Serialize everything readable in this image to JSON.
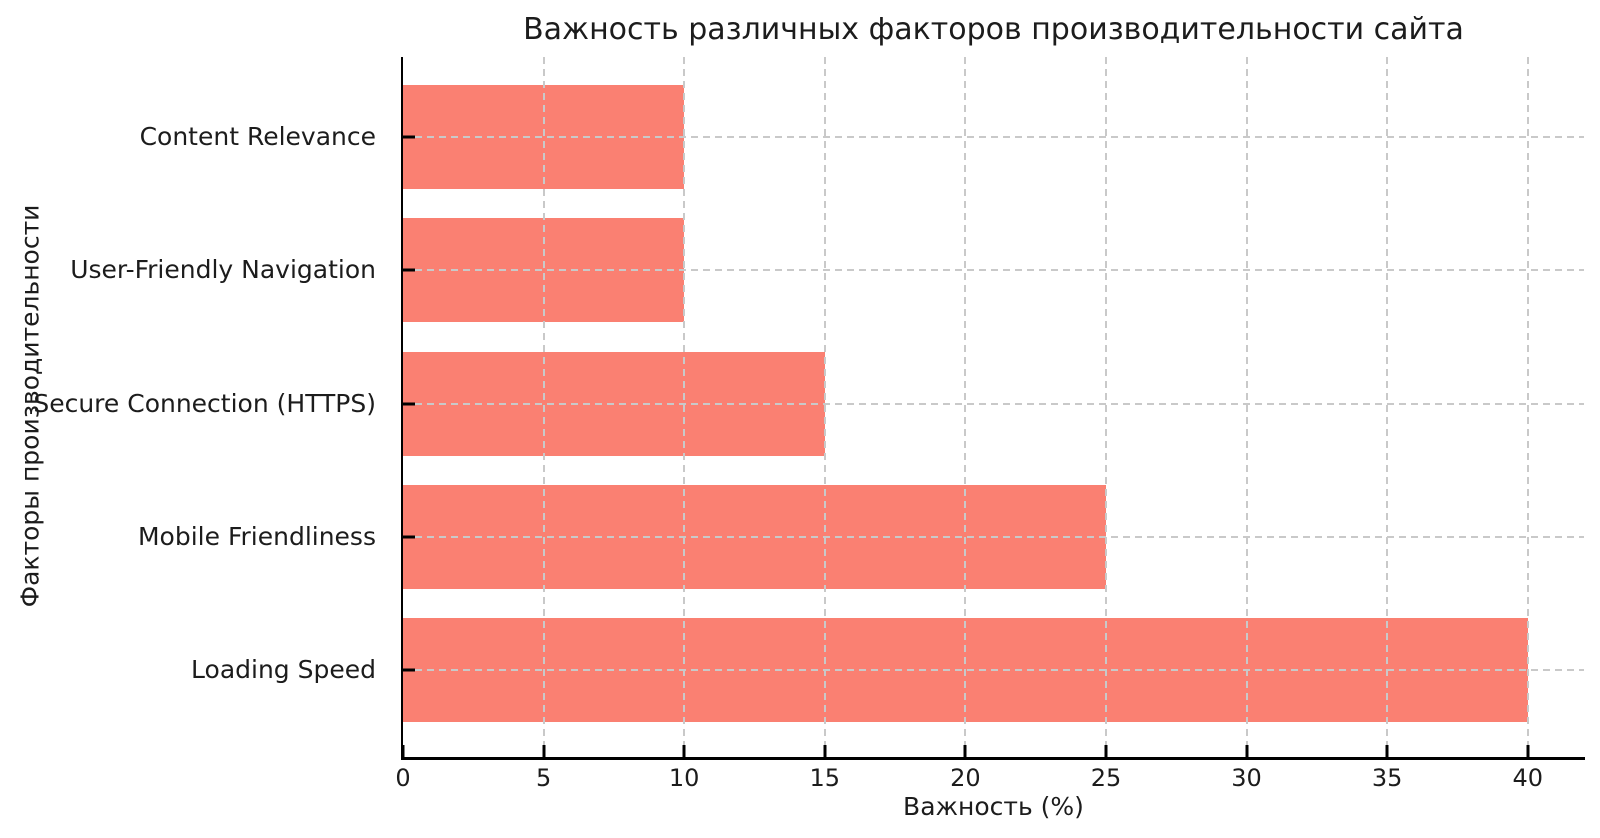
{
  "chart_data": {
    "type": "bar",
    "orientation": "horizontal",
    "title": "Важность различных факторов производительности сайта",
    "xlabel": "Важность (%)",
    "ylabel": "Факторы производительности",
    "categories": [
      "Content Relevance",
      "User-Friendly Navigation",
      "Secure Connection (HTTPS)",
      "Mobile Friendliness",
      "Loading Speed"
    ],
    "values": [
      10,
      10,
      15,
      25,
      40
    ],
    "xticks": [
      0,
      5,
      10,
      15,
      20,
      25,
      30,
      35,
      40
    ],
    "xlim": [
      0,
      42
    ],
    "grid": "dashed",
    "grid_on": true,
    "legend": "none",
    "bar_color": "#fa8072",
    "grid_color": "#c9c9c9",
    "axis_color": "#000000",
    "text_color": "#1c1c1c",
    "background_color": "#ffffff"
  }
}
